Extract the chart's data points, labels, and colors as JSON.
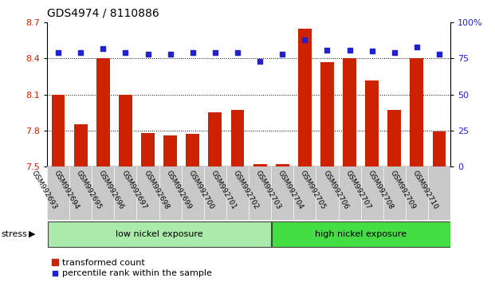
{
  "title": "GDS4974 / 8110886",
  "samples": [
    "GSM992693",
    "GSM992694",
    "GSM992695",
    "GSM992696",
    "GSM992697",
    "GSM992698",
    "GSM992699",
    "GSM992700",
    "GSM992701",
    "GSM992702",
    "GSM992703",
    "GSM992704",
    "GSM992705",
    "GSM992706",
    "GSM992707",
    "GSM992708",
    "GSM992709",
    "GSM992710"
  ],
  "bar_values": [
    8.1,
    7.85,
    8.4,
    8.1,
    7.78,
    7.76,
    7.77,
    7.95,
    7.97,
    7.52,
    7.52,
    8.65,
    8.37,
    8.4,
    8.22,
    7.97,
    8.4,
    7.79
  ],
  "percentile_values": [
    79,
    79,
    82,
    79,
    78,
    78,
    79,
    79,
    79,
    73,
    78,
    88,
    81,
    81,
    80,
    79,
    83,
    78
  ],
  "bar_color": "#cc2200",
  "marker_color": "#2222cc",
  "ylim_left": [
    7.5,
    8.7
  ],
  "ylim_right": [
    0,
    100
  ],
  "yticks_left": [
    7.5,
    7.8,
    8.1,
    8.4,
    8.7
  ],
  "yticks_right": [
    0,
    25,
    50,
    75,
    100
  ],
  "ytick_labels_right": [
    "0",
    "25",
    "50",
    "75",
    "100%"
  ],
  "grid_values": [
    7.8,
    8.1,
    8.4
  ],
  "low_nickel_label": "low nickel exposure",
  "high_nickel_label": "high nickel exposure",
  "n_low": 10,
  "n_high": 8,
  "stress_label": "stress",
  "arrow": "▶",
  "legend_bar_label": "transformed count",
  "legend_marker_label": "percentile rank within the sample",
  "background_color": "#ffffff",
  "xlabel_area_color": "#c8c8c8",
  "low_nickel_color": "#aaeaaa",
  "high_nickel_color": "#44dd44"
}
